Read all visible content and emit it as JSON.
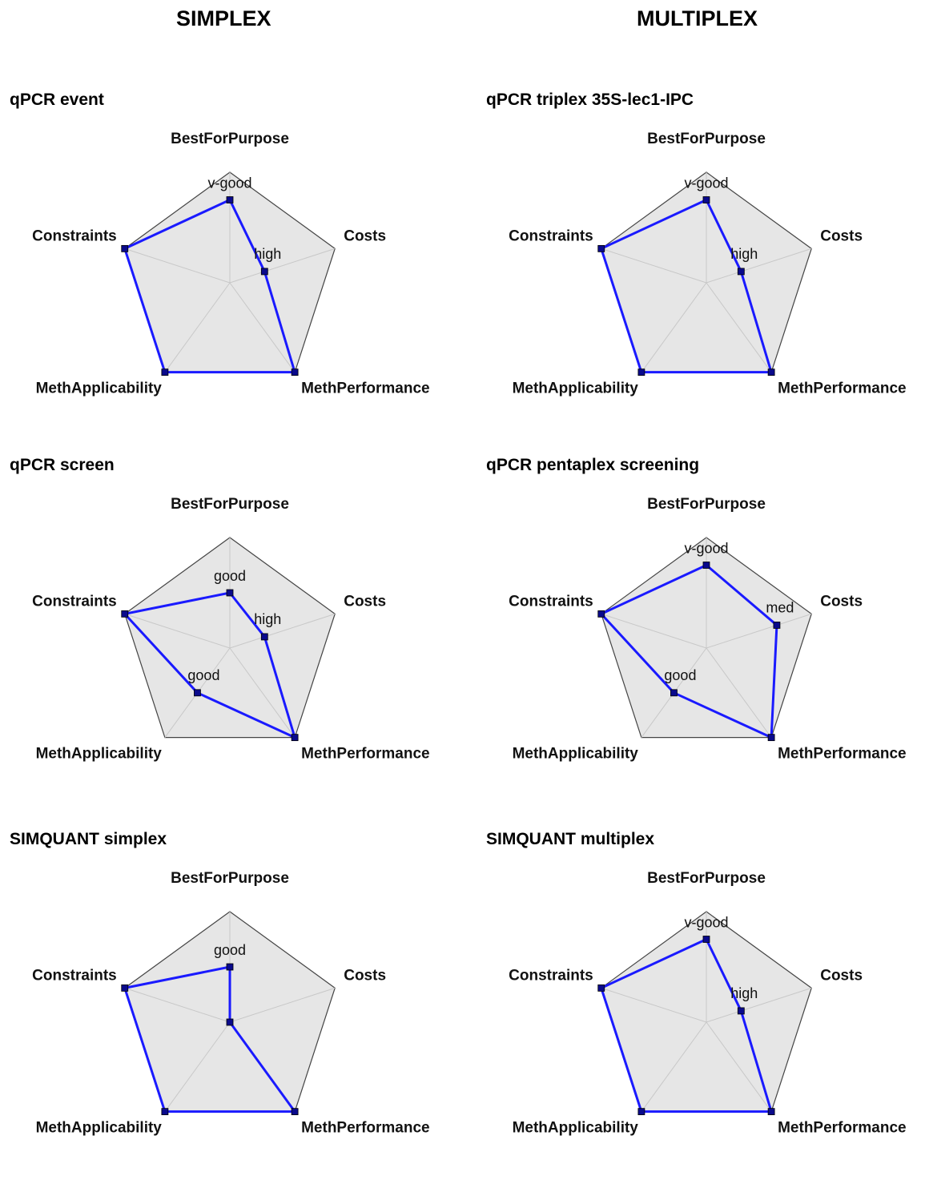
{
  "columns": [
    "SIMPLEX",
    "MULTIPLEX"
  ],
  "colors": {
    "series": "#1a1aff",
    "marker": "#0a0a8c",
    "fill": "#e6e6e6",
    "outline": "#444444",
    "spoke": "#c8c8c8"
  },
  "chart_data": [
    {
      "type": "radar",
      "title": "qPCR event",
      "axes": [
        "BestForPurpose",
        "Costs",
        "MethPerformance",
        "MethApplicability",
        "Constraints"
      ],
      "values": [
        0.75,
        0.33,
        1.0,
        1.0,
        1.0
      ],
      "point_labels": [
        "v-good",
        "high",
        "",
        "",
        ""
      ]
    },
    {
      "type": "radar",
      "title": "qPCR triplex 35S-lec1-IPC",
      "axes": [
        "BestForPurpose",
        "Costs",
        "MethPerformance",
        "MethApplicability",
        "Constraints"
      ],
      "values": [
        0.75,
        0.33,
        1.0,
        1.0,
        1.0
      ],
      "point_labels": [
        "v-good",
        "high",
        "",
        "",
        ""
      ]
    },
    {
      "type": "radar",
      "title": "qPCR screen",
      "axes": [
        "BestForPurpose",
        "Costs",
        "MethPerformance",
        "MethApplicability",
        "Constraints"
      ],
      "values": [
        0.5,
        0.33,
        1.0,
        0.5,
        1.0
      ],
      "point_labels": [
        "good",
        "high",
        "",
        "good",
        ""
      ]
    },
    {
      "type": "radar",
      "title": "qPCR pentaplex screening",
      "axes": [
        "BestForPurpose",
        "Costs",
        "MethPerformance",
        "MethApplicability",
        "Constraints"
      ],
      "values": [
        0.75,
        0.67,
        1.0,
        0.5,
        1.0
      ],
      "point_labels": [
        "v-good",
        "med",
        "",
        "good",
        ""
      ]
    },
    {
      "type": "radar",
      "title": "SIMQUANT simplex",
      "axes": [
        "BestForPurpose",
        "Costs",
        "MethPerformance",
        "MethApplicability",
        "Constraints"
      ],
      "values": [
        0.5,
        0.0,
        1.0,
        1.0,
        1.0
      ],
      "point_labels": [
        "good",
        "",
        "",
        "",
        ""
      ]
    },
    {
      "type": "radar",
      "title": "SIMQUANT multiplex",
      "axes": [
        "BestForPurpose",
        "Costs",
        "MethPerformance",
        "MethApplicability",
        "Constraints"
      ],
      "values": [
        0.75,
        0.33,
        1.0,
        1.0,
        1.0
      ],
      "point_labels": [
        "v-good",
        "high",
        "",
        "",
        ""
      ]
    }
  ]
}
